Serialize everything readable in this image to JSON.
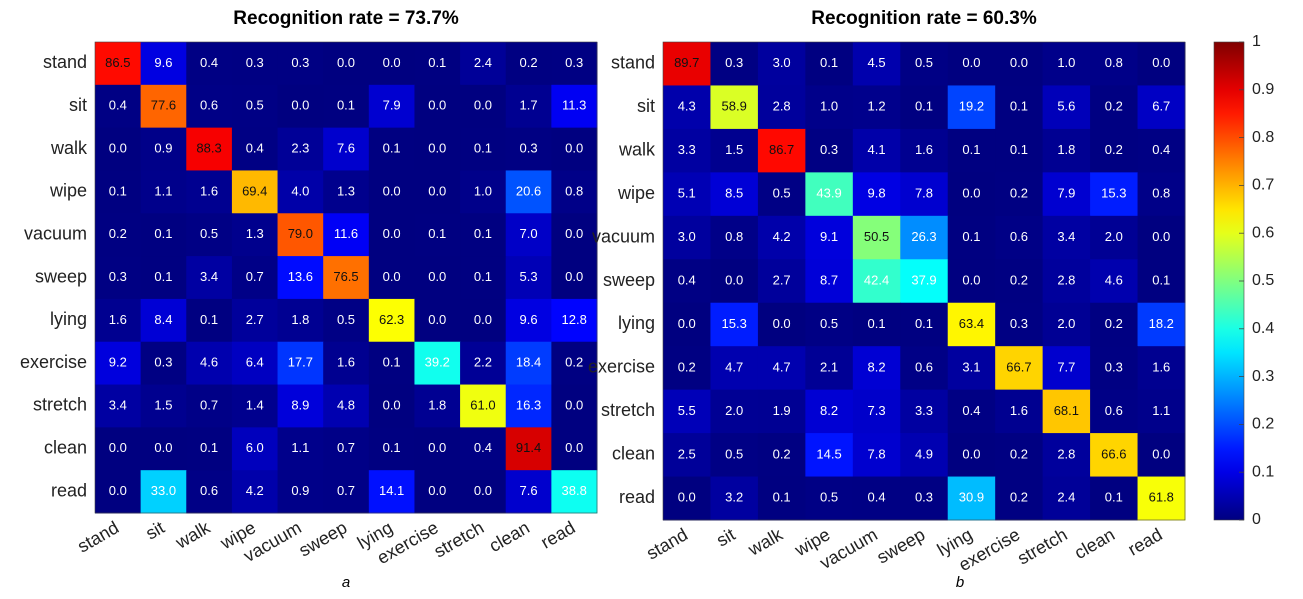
{
  "chart_data": [
    {
      "type": "heatmap",
      "title": "Recognition rate = 73.7%",
      "caption": "a",
      "colormap": "jet",
      "clim": [
        0,
        1
      ],
      "categories": [
        "stand",
        "sit",
        "walk",
        "wipe",
        "vacuum",
        "sweep",
        "lying",
        "exercise",
        "stretch",
        "clean",
        "read"
      ],
      "values": [
        [
          0.865,
          0.096,
          0.004,
          0.003,
          0.003,
          0,
          0,
          0.001,
          0.024,
          0.002,
          0.003
        ],
        [
          0.004,
          0.776,
          0.006,
          0.005,
          0,
          0.001,
          0.079,
          0,
          0,
          0.017,
          0.113
        ],
        [
          0,
          0.009,
          0.883,
          0.004,
          0.023,
          0.076,
          0.001,
          0,
          0.001,
          0.003,
          0
        ],
        [
          0.001,
          0.011,
          0.016,
          0.694,
          0.04,
          0.013,
          0,
          0,
          0.01,
          0.206,
          0.008
        ],
        [
          0.002,
          0.001,
          0.005,
          0.013,
          0.79,
          0.116,
          0,
          0.001,
          0.001,
          0.07,
          0
        ],
        [
          0.003,
          0.001,
          0.034,
          0.007,
          0.136,
          0.765,
          0,
          0,
          0.001,
          0.053,
          0
        ],
        [
          0.016,
          0.084,
          0.001,
          0.027,
          0.018,
          0.005,
          0.623,
          0,
          0,
          0.096,
          0.128
        ],
        [
          0.092,
          0.003,
          0.046,
          0.064,
          0.177,
          0.016,
          0.001,
          0.392,
          0.022,
          0.184,
          0.002
        ],
        [
          0.034,
          0.015,
          0.007,
          0.014,
          0.089,
          0.048,
          0,
          0.018,
          0.61,
          0.163,
          0
        ],
        [
          0,
          0,
          0.001,
          0.06,
          0.011,
          0.007,
          0.001,
          0,
          0.004,
          0.914,
          0
        ],
        [
          0,
          0.33,
          0.006,
          0.042,
          0.009,
          0.007,
          0.141,
          0,
          0,
          0.076,
          0.388
        ]
      ],
      "value_labels": [
        [
          "86.5",
          "9.6",
          "0.4",
          "0.3",
          "0.3",
          "0.0",
          "0.0",
          "0.1",
          "2.4",
          "0.2",
          "0.3"
        ],
        [
          "0.4",
          "77.6",
          "0.6",
          "0.5",
          "0.0",
          "0.1",
          "7.9",
          "0.0",
          "0.0",
          "1.7",
          "11.3"
        ],
        [
          "0.0",
          "0.9",
          "88.3",
          "0.4",
          "2.3",
          "7.6",
          "0.1",
          "0.0",
          "0.1",
          "0.3",
          "0.0"
        ],
        [
          "0.1",
          "1.1",
          "1.6",
          "69.4",
          "4.0",
          "1.3",
          "0.0",
          "0.0",
          "1.0",
          "20.6",
          "0.8"
        ],
        [
          "0.2",
          "0.1",
          "0.5",
          "1.3",
          "79.0",
          "11.6",
          "0.0",
          "0.1",
          "0.1",
          "7.0",
          "0.0"
        ],
        [
          "0.3",
          "0.1",
          "3.4",
          "0.7",
          "13.6",
          "76.5",
          "0.0",
          "0.0",
          "0.1",
          "5.3",
          "0.0"
        ],
        [
          "1.6",
          "8.4",
          "0.1",
          "2.7",
          "1.8",
          "0.5",
          "62.3",
          "0.0",
          "0.0",
          "9.6",
          "12.8"
        ],
        [
          "9.2",
          "0.3",
          "4.6",
          "6.4",
          "17.7",
          "1.6",
          "0.1",
          "39.2",
          "2.2",
          "18.4",
          "0.2"
        ],
        [
          "3.4",
          "1.5",
          "0.7",
          "1.4",
          "8.9",
          "4.8",
          "0.0",
          "1.8",
          "61.0",
          "16.3",
          "0.0"
        ],
        [
          "0.0",
          "0.0",
          "0.1",
          "6.0",
          "1.1",
          "0.7",
          "0.1",
          "0.0",
          "0.4",
          "91.4",
          "0.0"
        ],
        [
          "0.0",
          "33.0",
          "0.6",
          "4.2",
          "0.9",
          "0.7",
          "14.1",
          "0.0",
          "0.0",
          "7.6",
          "38.8"
        ]
      ]
    },
    {
      "type": "heatmap",
      "title": "Recognition rate = 60.3%",
      "caption": "b",
      "colormap": "jet",
      "clim": [
        0,
        1
      ],
      "cticks": [
        0,
        0.1,
        0.2,
        0.3,
        0.4,
        0.5,
        0.6,
        0.7,
        0.8,
        0.9,
        1
      ],
      "categories": [
        "stand",
        "sit",
        "walk",
        "wipe",
        "vacuum",
        "sweep",
        "lying",
        "exercise",
        "stretch",
        "clean",
        "read"
      ],
      "values": [
        [
          0.897,
          0.003,
          0.03,
          0.001,
          0.045,
          0.005,
          0,
          0,
          0.01,
          0.008,
          0
        ],
        [
          0.043,
          0.589,
          0.028,
          0.01,
          0.012,
          0.001,
          0.192,
          0.001,
          0.056,
          0.002,
          0.067
        ],
        [
          0.033,
          0.015,
          0.867,
          0.003,
          0.041,
          0.016,
          0.001,
          0.001,
          0.018,
          0.002,
          0.004
        ],
        [
          0.051,
          0.085,
          0.005,
          0.439,
          0.098,
          0.078,
          0,
          0.002,
          0.079,
          0.153,
          0.008
        ],
        [
          0.03,
          0.008,
          0.042,
          0.091,
          0.505,
          0.263,
          0.001,
          0.006,
          0.034,
          0.02,
          0
        ],
        [
          0.004,
          0,
          0.027,
          0.087,
          0.424,
          0.379,
          0,
          0.002,
          0.028,
          0.046,
          0.001
        ],
        [
          0,
          0.153,
          0,
          0.005,
          0.001,
          0.001,
          0.634,
          0.003,
          0.02,
          0.002,
          0.182
        ],
        [
          0.002,
          0.047,
          0.047,
          0.021,
          0.082,
          0.006,
          0.031,
          0.667,
          0.077,
          0.003,
          0.016
        ],
        [
          0.055,
          0.02,
          0.019,
          0.082,
          0.073,
          0.033,
          0.004,
          0.016,
          0.681,
          0.006,
          0.011
        ],
        [
          0.025,
          0.005,
          0.002,
          0.145,
          0.078,
          0.049,
          0,
          0.002,
          0.028,
          0.666,
          0
        ],
        [
          0,
          0.032,
          0.001,
          0.005,
          0.004,
          0.003,
          0.309,
          0.002,
          0.024,
          0.001,
          0.618
        ]
      ],
      "value_labels": [
        [
          "89.7",
          "0.3",
          "3.0",
          "0.1",
          "4.5",
          "0.5",
          "0.0",
          "0.0",
          "1.0",
          "0.8",
          "0.0"
        ],
        [
          "4.3",
          "58.9",
          "2.8",
          "1.0",
          "1.2",
          "0.1",
          "19.2",
          "0.1",
          "5.6",
          "0.2",
          "6.7"
        ],
        [
          "3.3",
          "1.5",
          "86.7",
          "0.3",
          "4.1",
          "1.6",
          "0.1",
          "0.1",
          "1.8",
          "0.2",
          "0.4"
        ],
        [
          "5.1",
          "8.5",
          "0.5",
          "43.9",
          "9.8",
          "7.8",
          "0.0",
          "0.2",
          "7.9",
          "15.3",
          "0.8"
        ],
        [
          "3.0",
          "0.8",
          "4.2",
          "9.1",
          "50.5",
          "26.3",
          "0.1",
          "0.6",
          "3.4",
          "2.0",
          "0.0"
        ],
        [
          "0.4",
          "0.0",
          "2.7",
          "8.7",
          "42.4",
          "37.9",
          "0.0",
          "0.2",
          "2.8",
          "4.6",
          "0.1"
        ],
        [
          "0.0",
          "15.3",
          "0.0",
          "0.5",
          "0.1",
          "0.1",
          "63.4",
          "0.3",
          "2.0",
          "0.2",
          "18.2"
        ],
        [
          "0.2",
          "4.7",
          "4.7",
          "2.1",
          "8.2",
          "0.6",
          "3.1",
          "66.7",
          "7.7",
          "0.3",
          "1.6"
        ],
        [
          "5.5",
          "2.0",
          "1.9",
          "8.2",
          "7.3",
          "3.3",
          "0.4",
          "1.6",
          "68.1",
          "0.6",
          "1.1"
        ],
        [
          "2.5",
          "0.5",
          "0.2",
          "14.5",
          "7.8",
          "4.9",
          "0.0",
          "0.2",
          "2.8",
          "66.6",
          "0.0"
        ],
        [
          "0.0",
          "3.2",
          "0.1",
          "0.5",
          "0.4",
          "0.3",
          "30.9",
          "0.2",
          "2.4",
          "0.1",
          "61.8"
        ]
      ]
    }
  ]
}
